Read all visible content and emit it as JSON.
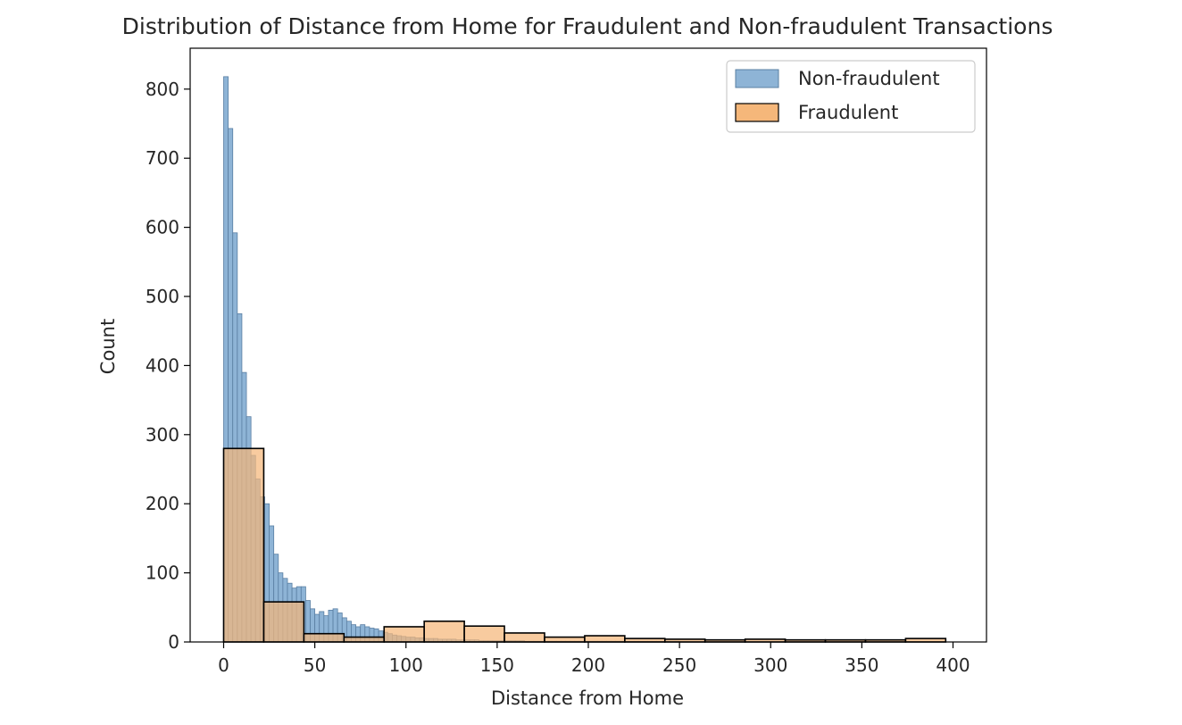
{
  "chart_data": {
    "type": "histogram",
    "title": "Distribution of Distance from Home for Fraudulent and Non-fraudulent Transactions",
    "xlabel": "Distance from Home",
    "ylabel": "Count",
    "xlim": [
      -20,
      410
    ],
    "ylim": [
      0,
      860
    ],
    "x_ticks": [
      0,
      50,
      100,
      150,
      200,
      250,
      300,
      350,
      400
    ],
    "y_ticks": [
      0,
      100,
      200,
      300,
      400,
      500,
      600,
      700,
      800
    ],
    "legend_position": "top-right",
    "colors": {
      "non_fraudulent_fill": "#8eb4d6",
      "non_fraudulent_edge": "#5a7fa3",
      "fraudulent_fill": "#f5b77a",
      "fraudulent_edge": "#000000"
    },
    "series": [
      {
        "name": "Non-fraudulent",
        "bin_start": 0,
        "bin_width": 2.5,
        "counts": [
          818,
          743,
          592,
          475,
          390,
          326,
          270,
          236,
          210,
          200,
          168,
          127,
          100,
          92,
          85,
          78,
          80,
          80,
          60,
          48,
          40,
          44,
          38,
          46,
          48,
          42,
          35,
          30,
          25,
          22,
          25,
          22,
          20,
          19,
          16,
          14,
          12,
          10,
          9,
          8,
          7,
          7,
          6,
          6,
          5,
          5,
          5,
          4,
          4,
          4,
          4,
          3,
          3,
          3,
          3,
          3,
          2,
          2,
          2,
          2,
          2,
          2,
          2,
          2,
          2,
          2,
          1,
          1,
          1,
          1,
          1,
          1,
          1,
          1,
          1,
          1,
          1,
          1,
          1,
          1,
          1,
          1,
          1,
          1,
          1,
          1,
          1,
          1,
          1,
          1,
          1,
          1,
          1,
          1,
          1,
          1,
          1,
          1,
          1,
          1
        ]
      },
      {
        "name": "Fraudulent",
        "bin_start": 0,
        "bin_width": 22,
        "counts": [
          280,
          58,
          12,
          7,
          22,
          30,
          23,
          13,
          7,
          9,
          5,
          4,
          3,
          4,
          3,
          3,
          3,
          5
        ]
      }
    ]
  }
}
